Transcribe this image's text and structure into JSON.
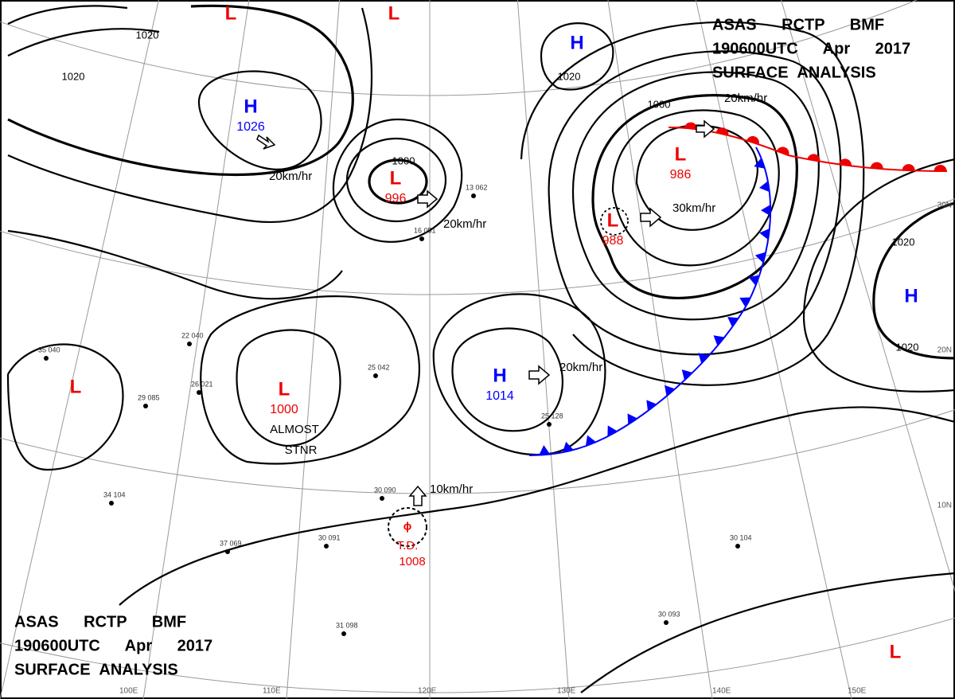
{
  "header": {
    "lines": [
      "ASAS RCTP BMF",
      "190600UTC Apr 2017",
      "SURFACE ANALYSIS"
    ]
  },
  "pressure_systems": [
    {
      "symbol": "L"
    },
    {
      "symbol": "L"
    },
    {
      "symbol": "H"
    },
    {
      "symbol": "H",
      "value": "1026"
    },
    {
      "symbol": "L",
      "value": "996"
    },
    {
      "symbol": "L",
      "value": "986"
    },
    {
      "symbol": "L",
      "value": "988"
    },
    {
      "symbol": "L"
    },
    {
      "symbol": "L",
      "value": "1000"
    },
    {
      "symbol": "H",
      "value": "1014"
    },
    {
      "symbol": "H"
    },
    {
      "symbol": "L"
    }
  ],
  "tropical_depression": {
    "label": "T.D.",
    "value": "1008"
  },
  "isobar_labels": [
    "1020",
    "1020",
    "1020",
    "1000",
    "1000",
    "1020",
    "1020"
  ],
  "movement_labels": [
    "20km/hr",
    "20km/hr",
    "20km/hr",
    "30km/hr",
    "20km/hr",
    "10km/hr"
  ],
  "annotations": [
    "ALMOST",
    "STNR"
  ],
  "longitude_labels": [
    "100E",
    "110E",
    "120E",
    "130E",
    "140E",
    "150E"
  ],
  "latitude_labels": [
    "30N",
    "20N",
    "10N"
  ],
  "station_labels": [
    "25 042",
    "29 085",
    "35 040",
    "22 040",
    "26 021",
    "30 090",
    "31 098",
    "30 104",
    "34 104",
    "37 069",
    "30 091",
    "25 128",
    "16 051",
    "13 062",
    "30 093"
  ]
}
